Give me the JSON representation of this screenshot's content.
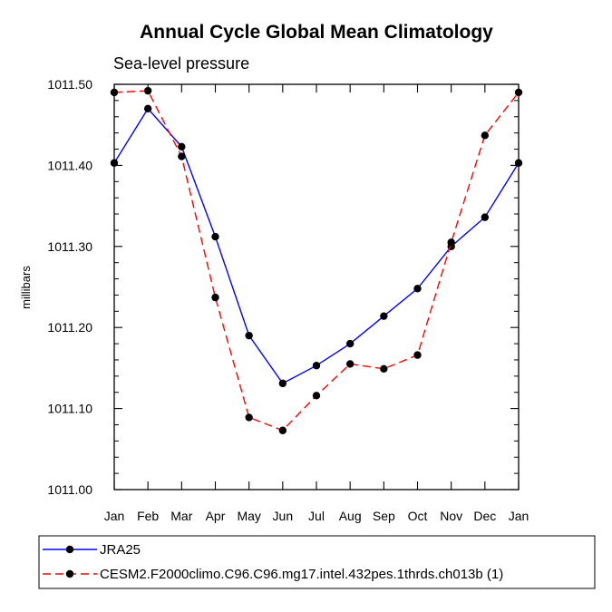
{
  "chart_data": {
    "type": "line",
    "title": "Annual Cycle Global Mean Climatology",
    "subtitle": "Sea-level pressure",
    "xlabel": "",
    "ylabel": "millibars",
    "categories": [
      "Jan",
      "Feb",
      "Mar",
      "Apr",
      "May",
      "Jun",
      "Jul",
      "Aug",
      "Sep",
      "Oct",
      "Nov",
      "Dec",
      "Jan"
    ],
    "ylim": [
      1011.0,
      1011.5
    ],
    "yticks": [
      1011.0,
      1011.1,
      1011.2,
      1011.3,
      1011.4,
      1011.5
    ],
    "ytick_labels": [
      "1011.00",
      "1011.10",
      "1011.20",
      "1011.30",
      "1011.40",
      "1011.50"
    ],
    "grid": false,
    "legend_position": "bottom",
    "series": [
      {
        "name": "JRA25",
        "color": "#0000ff",
        "dash": "solid",
        "values": [
          1011.403,
          1011.47,
          1011.423,
          1011.312,
          1011.19,
          1011.131,
          1011.153,
          1011.18,
          1011.214,
          1011.248,
          1011.3,
          1011.336,
          1011.403
        ]
      },
      {
        "name": "CESM2.F2000climo.C96.C96.mg17.intel.432pes.1thrds.ch013b (1)",
        "color": "#ff0000",
        "dash": "dashed",
        "values": [
          1011.49,
          1011.492,
          1011.411,
          1011.237,
          1011.089,
          1011.073,
          1011.116,
          1011.155,
          1011.149,
          1011.166,
          1011.305,
          1011.437,
          1011.49
        ]
      }
    ]
  }
}
